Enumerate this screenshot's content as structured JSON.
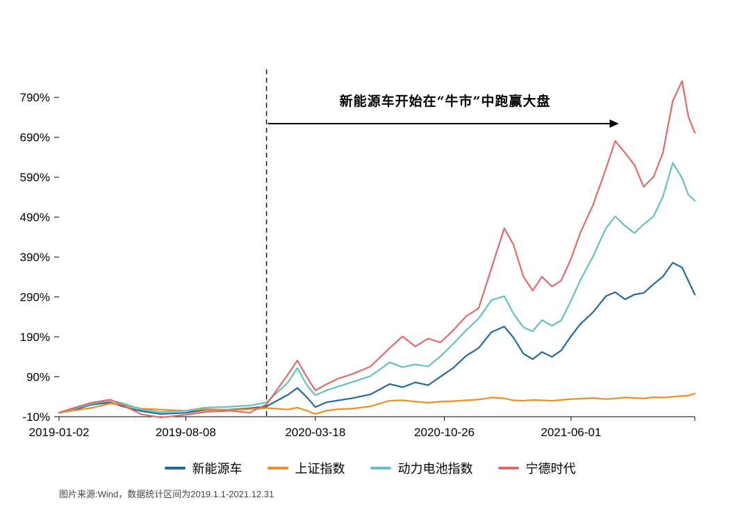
{
  "figure": {
    "background": "#ffffff"
  },
  "caption": "图片来源:Wind，数据统计区间为2019.1.1-2021.12.31",
  "chart_data": {
    "type": "line",
    "title": "",
    "xlabel": "",
    "ylabel": "",
    "grid": false,
    "legend_position": "bottom",
    "x_range": [
      "2019-01-02",
      "2021-12-31"
    ],
    "ylim": [
      -10,
      860
    ],
    "y_ticks": [
      "-10%",
      "90%",
      "190%",
      "290%",
      "390%",
      "490%",
      "590%",
      "690%",
      "790%"
    ],
    "y_tick_values": [
      -10,
      90,
      190,
      290,
      390,
      490,
      590,
      690,
      790
    ],
    "x_ticks": [
      {
        "label": "2019-01-02",
        "date": "2019-01-02"
      },
      {
        "label": "2019-08-08",
        "date": "2019-08-08"
      },
      {
        "label": "2020-03-18",
        "date": "2020-03-18"
      },
      {
        "label": "2020-10-26",
        "date": "2020-10-26"
      },
      {
        "label": "2021-06-01",
        "date": "2021-06-01"
      }
    ],
    "annotation": {
      "text": "新能源车开始在“牛市”中跑赢大盘",
      "dashed_line_date": "2019-12-25",
      "arrow_end_date": "2021-08-22"
    },
    "x_dates": [
      "2019-01-02",
      "2019-01-25",
      "2019-02-26",
      "2019-03-31",
      "2019-04-21",
      "2019-05-24",
      "2019-06-26",
      "2019-08-08",
      "2019-09-11",
      "2019-10-24",
      "2019-11-26",
      "2019-12-25",
      "2020-01-31",
      "2020-02-16",
      "2020-03-04",
      "2020-03-18",
      "2020-04-06",
      "2020-04-27",
      "2020-05-19",
      "2020-06-21",
      "2020-07-24",
      "2020-08-15",
      "2020-09-06",
      "2020-09-28",
      "2020-10-19",
      "2020-11-10",
      "2020-12-02",
      "2020-12-24",
      "2021-01-15",
      "2021-02-06",
      "2021-02-22",
      "2021-03-11",
      "2021-03-27",
      "2021-04-12",
      "2021-04-29",
      "2021-05-15",
      "2021-06-01",
      "2021-06-17",
      "2021-07-09",
      "2021-07-31",
      "2021-08-16",
      "2021-09-02",
      "2021-09-18",
      "2021-10-04",
      "2021-10-21",
      "2021-11-06",
      "2021-11-23",
      "2021-12-09",
      "2021-12-20",
      "2021-12-31"
    ],
    "series": [
      {
        "name": "新能源车",
        "color": "#20699b",
        "values": [
          0,
          6,
          20,
          26,
          16,
          4,
          -3,
          0,
          7,
          8,
          11,
          16,
          45,
          62,
          38,
          14,
          26,
          31,
          36,
          46,
          72,
          64,
          76,
          69,
          90,
          112,
          142,
          162,
          202,
          216,
          188,
          148,
          134,
          152,
          140,
          156,
          192,
          222,
          252,
          292,
          302,
          284,
          296,
          300,
          322,
          341,
          376,
          364,
          330,
          296
        ]
      },
      {
        "name": "上证指数",
        "color": "#f08c21",
        "values": [
          0,
          5,
          12,
          23,
          20,
          10,
          8,
          5,
          9,
          7,
          9,
          12,
          8,
          13,
          5,
          -3,
          5,
          9,
          10,
          16,
          30,
          31,
          28,
          25,
          28,
          29,
          31,
          33,
          38,
          36,
          31,
          30,
          32,
          31,
          30,
          32,
          34,
          35,
          37,
          34,
          36,
          38,
          37,
          36,
          39,
          38,
          40,
          42,
          43,
          48
        ]
      },
      {
        "name": "动力电池指数",
        "color": "#63c1bf",
        "values": [
          0,
          9,
          22,
          31,
          24,
          8,
          2,
          5,
          13,
          15,
          18,
          26,
          76,
          112,
          68,
          44,
          56,
          66,
          76,
          92,
          126,
          114,
          121,
          116,
          141,
          172,
          206,
          236,
          282,
          292,
          248,
          214,
          204,
          232,
          218,
          231,
          281,
          332,
          392,
          462,
          492,
          468,
          450,
          472,
          492,
          541,
          626,
          588,
          546,
          531
        ]
      },
      {
        "name": "宁德时代",
        "color": "#e16a67",
        "values": [
          0,
          11,
          25,
          33,
          19,
          -4,
          -12,
          -5,
          2,
          5,
          0,
          21,
          96,
          131,
          88,
          56,
          71,
          86,
          96,
          116,
          162,
          191,
          166,
          186,
          176,
          206,
          241,
          262,
          362,
          462,
          421,
          341,
          306,
          341,
          316,
          331,
          386,
          451,
          521,
          611,
          681,
          651,
          621,
          566,
          591,
          651,
          781,
          831,
          741,
          701
        ]
      }
    ]
  }
}
